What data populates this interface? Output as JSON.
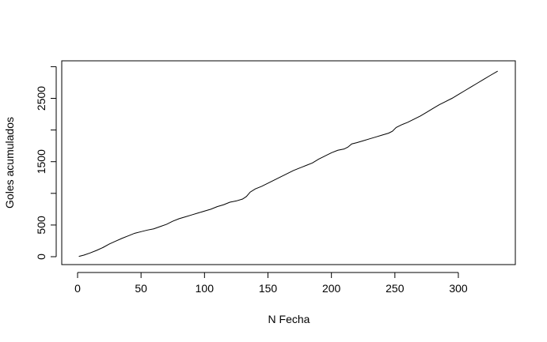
{
  "chart_data": {
    "type": "line",
    "xlabel": "N Fecha",
    "ylabel": "Goles acumulados",
    "xlim": [
      1,
      331
    ],
    "ylim": [
      0,
      3000
    ],
    "grid": false,
    "x_ticks": [
      0,
      50,
      100,
      150,
      200,
      250,
      300
    ],
    "x_tick_labels": [
      "0",
      "50",
      "100",
      "150",
      "200",
      "250",
      "300"
    ],
    "y_ticks": [
      0,
      500,
      1000,
      1500,
      2000,
      2500,
      3000
    ],
    "y_tick_labels": [
      "0",
      "500",
      "",
      "1500",
      "",
      "2500",
      ""
    ],
    "series": [
      {
        "x": [
          1,
          5,
          10,
          15,
          20,
          25,
          30,
          35,
          40,
          45,
          50,
          55,
          60,
          65,
          70,
          75,
          80,
          85,
          90,
          95,
          100,
          105,
          110,
          115,
          120,
          125,
          130,
          133,
          136,
          140,
          145,
          150,
          155,
          160,
          165,
          170,
          175,
          180,
          185,
          190,
          195,
          200,
          205,
          210,
          213,
          216,
          220,
          225,
          230,
          235,
          240,
          245,
          248,
          251,
          255,
          260,
          265,
          270,
          275,
          280,
          285,
          290,
          295,
          300,
          305,
          310,
          315,
          320,
          325,
          331
        ],
        "y": [
          5,
          25,
          60,
          100,
          145,
          200,
          245,
          290,
          330,
          370,
          395,
          420,
          440,
          475,
          510,
          560,
          600,
          630,
          660,
          690,
          720,
          750,
          790,
          820,
          860,
          880,
          910,
          950,
          1020,
          1070,
          1110,
          1160,
          1210,
          1260,
          1310,
          1360,
          1400,
          1440,
          1480,
          1540,
          1590,
          1640,
          1680,
          1700,
          1730,
          1780,
          1800,
          1830,
          1860,
          1890,
          1920,
          1950,
          1980,
          2040,
          2080,
          2120,
          2170,
          2220,
          2280,
          2340,
          2400,
          2450,
          2500,
          2560,
          2620,
          2680,
          2740,
          2800,
          2860,
          2930
        ]
      }
    ]
  }
}
